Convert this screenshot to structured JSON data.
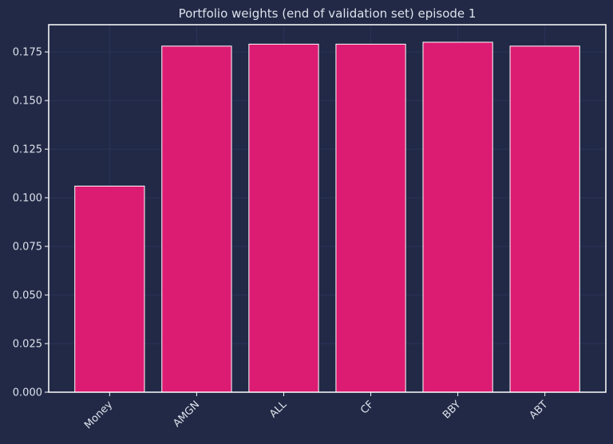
{
  "chart_data": {
    "type": "bar",
    "title": "Portfolio weights (end of validation set) episode 1",
    "xlabel": "",
    "ylabel": "",
    "categories": [
      "Money",
      "AMGN",
      "ALL",
      "CF",
      "BBY",
      "ABT"
    ],
    "values": [
      0.106,
      0.178,
      0.179,
      0.179,
      0.18,
      0.178
    ],
    "ylim": [
      0,
      0.189
    ],
    "yticks": [
      "0.000",
      "0.025",
      "0.050",
      "0.075",
      "0.100",
      "0.125",
      "0.150",
      "0.175"
    ],
    "grid": true,
    "legend": "none"
  },
  "colors": {
    "background": "#212946",
    "bar": "#dc1c72",
    "bar_edge": "#ffffff",
    "grid": "#2a3459",
    "axis": "#ffffff",
    "text": "#dce1ea"
  }
}
